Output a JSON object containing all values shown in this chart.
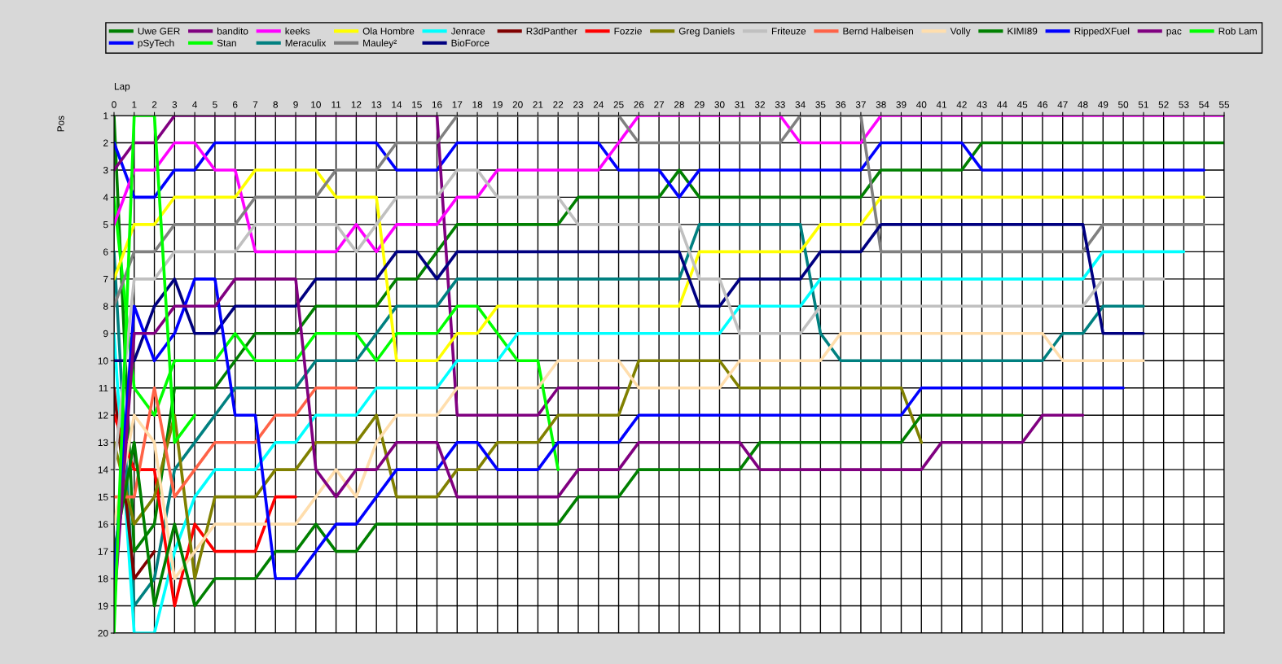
{
  "chart_data": {
    "type": "line",
    "xlabel": "Lap",
    "ylabel": "Pos",
    "x": [
      0,
      1,
      2,
      3,
      4,
      5,
      6,
      7,
      8,
      9,
      10,
      11,
      12,
      13,
      14,
      15,
      16,
      17,
      18,
      19,
      20,
      21,
      22,
      23,
      24,
      25,
      26,
      27,
      28,
      29,
      30,
      31,
      32,
      33,
      34,
      35,
      36,
      37,
      38,
      39,
      40,
      41,
      42,
      43,
      44,
      45,
      46,
      47,
      48,
      49,
      50,
      51,
      52,
      53,
      54,
      55
    ],
    "xlim": [
      0,
      55
    ],
    "xticks": [
      0,
      1,
      2,
      3,
      4,
      5,
      6,
      7,
      8,
      9,
      10,
      11,
      12,
      13,
      14,
      15,
      16,
      17,
      18,
      19,
      20,
      21,
      22,
      23,
      24,
      25,
      26,
      27,
      28,
      29,
      30,
      31,
      32,
      33,
      34,
      35,
      36,
      37,
      38,
      39,
      40,
      41,
      42,
      43,
      44,
      45,
      46,
      47,
      48,
      49,
      50,
      51,
      52,
      53,
      54,
      55
    ],
    "ylim": [
      20,
      1
    ],
    "yticks": [
      1,
      2,
      3,
      4,
      5,
      6,
      7,
      8,
      9,
      10,
      11,
      12,
      13,
      14,
      15,
      16,
      17,
      18,
      19,
      20
    ],
    "grid": true,
    "legend": "top",
    "marker": "none",
    "line_style": "solid",
    "series": [
      {
        "name": "Uwe GER",
        "color": "#008000",
        "values": [
          1,
          17,
          16,
          11,
          11,
          11,
          10,
          9,
          9,
          9,
          8,
          8,
          8,
          8,
          7,
          7,
          6,
          5,
          5,
          5,
          5,
          5,
          5,
          4,
          4,
          4,
          4,
          4,
          3,
          4,
          4,
          4,
          4,
          4,
          4,
          4,
          4,
          4,
          3,
          3,
          3,
          3,
          3,
          2,
          2,
          2,
          2,
          2,
          2,
          2,
          2,
          2,
          2,
          2,
          2,
          2
        ]
      },
      {
        "name": "pSyTech",
        "color": "#0000ff",
        "values": [
          2,
          4,
          4,
          3,
          3,
          2,
          2,
          2,
          2,
          2,
          2,
          2,
          2,
          2,
          3,
          3,
          3,
          2,
          2,
          2,
          2,
          2,
          2,
          2,
          2,
          3,
          3,
          3,
          4,
          3,
          3,
          3,
          3,
          3,
          3,
          3,
          3,
          3,
          2,
          2,
          2,
          2,
          2,
          3,
          3,
          3,
          3,
          3,
          3,
          3,
          3,
          3,
          3,
          3,
          3,
          null
        ]
      },
      {
        "name": "bandito",
        "color": "#800080",
        "values": [
          3,
          2,
          2,
          1,
          1,
          1,
          1,
          1,
          1,
          1,
          1,
          1,
          1,
          1,
          1,
          1,
          1,
          12,
          12,
          12,
          12,
          12,
          11,
          11,
          11,
          11,
          null,
          null,
          null,
          null,
          null,
          null,
          null,
          null,
          null,
          null,
          null,
          null,
          null,
          null,
          null,
          null,
          null,
          null,
          null,
          null,
          null,
          null,
          null,
          null,
          null,
          null,
          null,
          null,
          null,
          null
        ]
      },
      {
        "name": "Stan",
        "color": "#00ff00",
        "values": [
          4,
          11,
          12,
          10,
          10,
          10,
          9,
          10,
          10,
          10,
          9,
          9,
          9,
          10,
          9,
          9,
          9,
          8,
          8,
          9,
          10,
          10,
          14,
          null,
          null,
          null,
          null,
          null,
          null,
          null,
          null,
          null,
          null,
          null,
          null,
          null,
          null,
          null,
          null,
          null,
          null,
          null,
          null,
          null,
          null,
          null,
          null,
          null,
          null,
          null,
          null,
          null,
          null,
          null,
          null,
          null
        ]
      },
      {
        "name": "keeks",
        "color": "#ff00ff",
        "values": [
          5,
          3,
          3,
          2,
          2,
          3,
          3,
          6,
          6,
          6,
          6,
          6,
          5,
          6,
          5,
          5,
          5,
          4,
          4,
          3,
          3,
          3,
          3,
          3,
          3,
          2,
          1,
          1,
          1,
          1,
          1,
          1,
          1,
          1,
          2,
          2,
          2,
          2,
          1,
          1,
          1,
          1,
          1,
          1,
          1,
          1,
          1,
          1,
          1,
          1,
          1,
          1,
          1,
          1,
          1,
          1
        ]
      },
      {
        "name": "Meraculix",
        "color": "#008080",
        "values": [
          6,
          19,
          18,
          14,
          13,
          12,
          11,
          11,
          11,
          11,
          10,
          10,
          10,
          9,
          8,
          8,
          8,
          7,
          7,
          7,
          7,
          7,
          7,
          7,
          7,
          7,
          7,
          7,
          7,
          5,
          5,
          5,
          5,
          5,
          5,
          9,
          10,
          10,
          10,
          10,
          10,
          10,
          10,
          10,
          10,
          10,
          10,
          9,
          9,
          8,
          8,
          8,
          null,
          null,
          null,
          null
        ]
      },
      {
        "name": "Ola Hombre",
        "color": "#ffff00",
        "values": [
          7,
          5,
          5,
          4,
          4,
          4,
          4,
          3,
          3,
          3,
          3,
          4,
          4,
          4,
          10,
          10,
          10,
          9,
          9,
          8,
          8,
          8,
          8,
          8,
          8,
          8,
          8,
          8,
          8,
          6,
          6,
          6,
          6,
          6,
          6,
          5,
          5,
          5,
          4,
          4,
          4,
          4,
          4,
          4,
          4,
          4,
          4,
          4,
          4,
          4,
          4,
          4,
          4,
          4,
          4,
          null
        ]
      },
      {
        "name": "Mauley²",
        "color": "#808080",
        "values": [
          8,
          6,
          6,
          5,
          5,
          5,
          5,
          4,
          4,
          4,
          4,
          3,
          3,
          3,
          2,
          2,
          2,
          1,
          1,
          1,
          1,
          1,
          1,
          1,
          1,
          1,
          2,
          2,
          2,
          2,
          2,
          2,
          2,
          2,
          1,
          1,
          1,
          1,
          6,
          6,
          6,
          6,
          6,
          6,
          6,
          6,
          6,
          6,
          6,
          5,
          5,
          5,
          5,
          5,
          5,
          null
        ]
      },
      {
        "name": "Jenrace",
        "color": "#00ffff",
        "values": [
          9,
          20,
          20,
          17,
          15,
          14,
          14,
          14,
          13,
          13,
          12,
          12,
          12,
          11,
          11,
          11,
          11,
          10,
          10,
          10,
          9,
          9,
          9,
          9,
          9,
          9,
          9,
          9,
          9,
          9,
          9,
          8,
          8,
          8,
          8,
          7,
          7,
          7,
          7,
          7,
          7,
          7,
          7,
          7,
          7,
          7,
          7,
          7,
          7,
          6,
          6,
          6,
          6,
          6,
          null,
          null
        ]
      },
      {
        "name": "BioForce",
        "color": "#000080",
        "values": [
          10,
          10,
          8,
          7,
          9,
          9,
          8,
          8,
          8,
          8,
          7,
          7,
          7,
          7,
          6,
          6,
          7,
          6,
          6,
          6,
          6,
          6,
          6,
          6,
          6,
          6,
          6,
          6,
          6,
          8,
          8,
          7,
          7,
          7,
          7,
          6,
          6,
          6,
          5,
          5,
          5,
          5,
          5,
          5,
          5,
          5,
          5,
          5,
          5,
          9,
          9,
          9,
          null,
          null,
          null,
          null
        ]
      },
      {
        "name": "R3dPanther",
        "color": "#800000",
        "values": [
          11,
          18,
          17,
          null,
          null,
          null,
          null,
          null,
          null,
          null,
          null,
          null,
          null,
          null,
          null,
          null,
          null,
          null,
          null,
          null,
          null,
          null,
          null,
          null,
          null,
          null,
          null,
          null,
          null,
          null,
          null,
          null,
          null,
          null,
          null,
          null,
          null,
          null,
          null,
          null,
          null,
          null,
          null,
          null,
          null,
          null,
          null,
          null,
          null,
          null,
          null,
          null,
          null,
          null,
          null,
          null
        ]
      },
      {
        "name": "Fozzie",
        "color": "#ff0000",
        "values": [
          12,
          14,
          14,
          19,
          16,
          17,
          17,
          17,
          15,
          15,
          null,
          null,
          null,
          null,
          null,
          null,
          null,
          null,
          null,
          null,
          null,
          null,
          null,
          null,
          null,
          null,
          null,
          null,
          null,
          null,
          null,
          null,
          null,
          null,
          null,
          null,
          null,
          null,
          null,
          null,
          null,
          null,
          null,
          null,
          null,
          null,
          null,
          null,
          null,
          null,
          null,
          null,
          null,
          null,
          null,
          null
        ]
      },
      {
        "name": "Greg Daniels",
        "color": "#808000",
        "values": [
          13,
          16,
          15,
          12,
          18,
          15,
          15,
          15,
          14,
          14,
          13,
          13,
          13,
          12,
          15,
          15,
          15,
          14,
          14,
          13,
          13,
          13,
          12,
          12,
          12,
          12,
          10,
          10,
          10,
          10,
          10,
          11,
          11,
          11,
          11,
          11,
          11,
          11,
          11,
          11,
          13,
          null,
          null,
          null,
          null,
          null,
          null,
          null,
          null,
          null,
          null,
          null,
          null,
          null,
          null,
          null
        ]
      },
      {
        "name": "Friteuze",
        "color": "#c0c0c0",
        "values": [
          14,
          7,
          7,
          6,
          6,
          6,
          6,
          5,
          5,
          5,
          5,
          5,
          6,
          5,
          4,
          4,
          4,
          3,
          3,
          4,
          4,
          4,
          4,
          5,
          5,
          5,
          5,
          5,
          5,
          7,
          7,
          9,
          9,
          9,
          9,
          8,
          8,
          8,
          8,
          8,
          8,
          8,
          8,
          8,
          8,
          8,
          8,
          8,
          8,
          7,
          7,
          7,
          7,
          null,
          null,
          null
        ]
      },
      {
        "name": "Bernd Halbeisen",
        "color": "#ff6347",
        "values": [
          15,
          15,
          11,
          15,
          14,
          13,
          13,
          13,
          12,
          12,
          11,
          11,
          11,
          null,
          null,
          null,
          null,
          null,
          null,
          null,
          null,
          null,
          null,
          null,
          null,
          null,
          null,
          null,
          null,
          null,
          null,
          null,
          null,
          null,
          null,
          null,
          null,
          null,
          null,
          null,
          null,
          null,
          null,
          null,
          null,
          null,
          null,
          null,
          null,
          null,
          null,
          null,
          null,
          null,
          null,
          null
        ]
      },
      {
        "name": "Volly",
        "color": "#ffdead",
        "values": [
          16,
          12,
          13,
          18,
          17,
          16,
          16,
          16,
          16,
          16,
          15,
          14,
          15,
          13,
          12,
          12,
          12,
          11,
          11,
          11,
          11,
          11,
          10,
          10,
          10,
          10,
          11,
          11,
          11,
          11,
          11,
          10,
          10,
          10,
          10,
          10,
          9,
          9,
          9,
          9,
          9,
          9,
          9,
          9,
          9,
          9,
          9,
          10,
          10,
          10,
          10,
          10,
          null,
          null,
          null,
          null
        ]
      },
      {
        "name": "KIMI89",
        "color": "#008000",
        "values": [
          17,
          13,
          19,
          16,
          19,
          18,
          18,
          18,
          17,
          17,
          16,
          17,
          17,
          16,
          16,
          16,
          16,
          16,
          16,
          16,
          16,
          16,
          16,
          15,
          15,
          15,
          14,
          14,
          14,
          14,
          14,
          14,
          13,
          13,
          13,
          13,
          13,
          13,
          13,
          13,
          12,
          12,
          12,
          12,
          12,
          12,
          null,
          null,
          null,
          null,
          null,
          null,
          null,
          null,
          null,
          null
        ]
      },
      {
        "name": "RippedXFuel",
        "color": "#0000ff",
        "values": [
          18,
          8,
          10,
          9,
          7,
          7,
          12,
          12,
          18,
          18,
          17,
          16,
          16,
          15,
          14,
          14,
          14,
          13,
          13,
          14,
          14,
          14,
          13,
          13,
          13,
          13,
          12,
          12,
          12,
          12,
          12,
          12,
          12,
          12,
          12,
          12,
          12,
          12,
          12,
          12,
          11,
          11,
          11,
          11,
          11,
          11,
          11,
          11,
          11,
          11,
          11,
          null,
          null,
          null,
          null,
          null
        ]
      },
      {
        "name": "pac",
        "color": "#800080",
        "values": [
          19,
          9,
          9,
          8,
          8,
          8,
          7,
          7,
          7,
          7,
          14,
          15,
          14,
          14,
          13,
          13,
          13,
          15,
          15,
          15,
          15,
          15,
          15,
          14,
          14,
          14,
          13,
          13,
          13,
          13,
          13,
          13,
          14,
          14,
          14,
          14,
          14,
          14,
          14,
          14,
          14,
          13,
          13,
          13,
          13,
          13,
          12,
          12,
          12,
          null,
          null,
          null,
          null,
          null,
          null,
          null
        ]
      },
      {
        "name": "Rob Lam",
        "color": "#00ff00",
        "values": [
          20,
          1,
          1,
          13,
          12,
          null,
          null,
          null,
          null,
          null,
          null,
          null,
          null,
          null,
          null,
          null,
          null,
          null,
          null,
          null,
          null,
          null,
          null,
          null,
          null,
          null,
          null,
          null,
          null,
          null,
          null,
          null,
          null,
          null,
          null,
          null,
          null,
          null,
          null,
          null,
          null,
          null,
          null,
          null,
          null,
          null,
          null,
          null,
          null,
          null,
          null,
          null,
          null,
          null,
          null,
          null
        ]
      }
    ]
  }
}
